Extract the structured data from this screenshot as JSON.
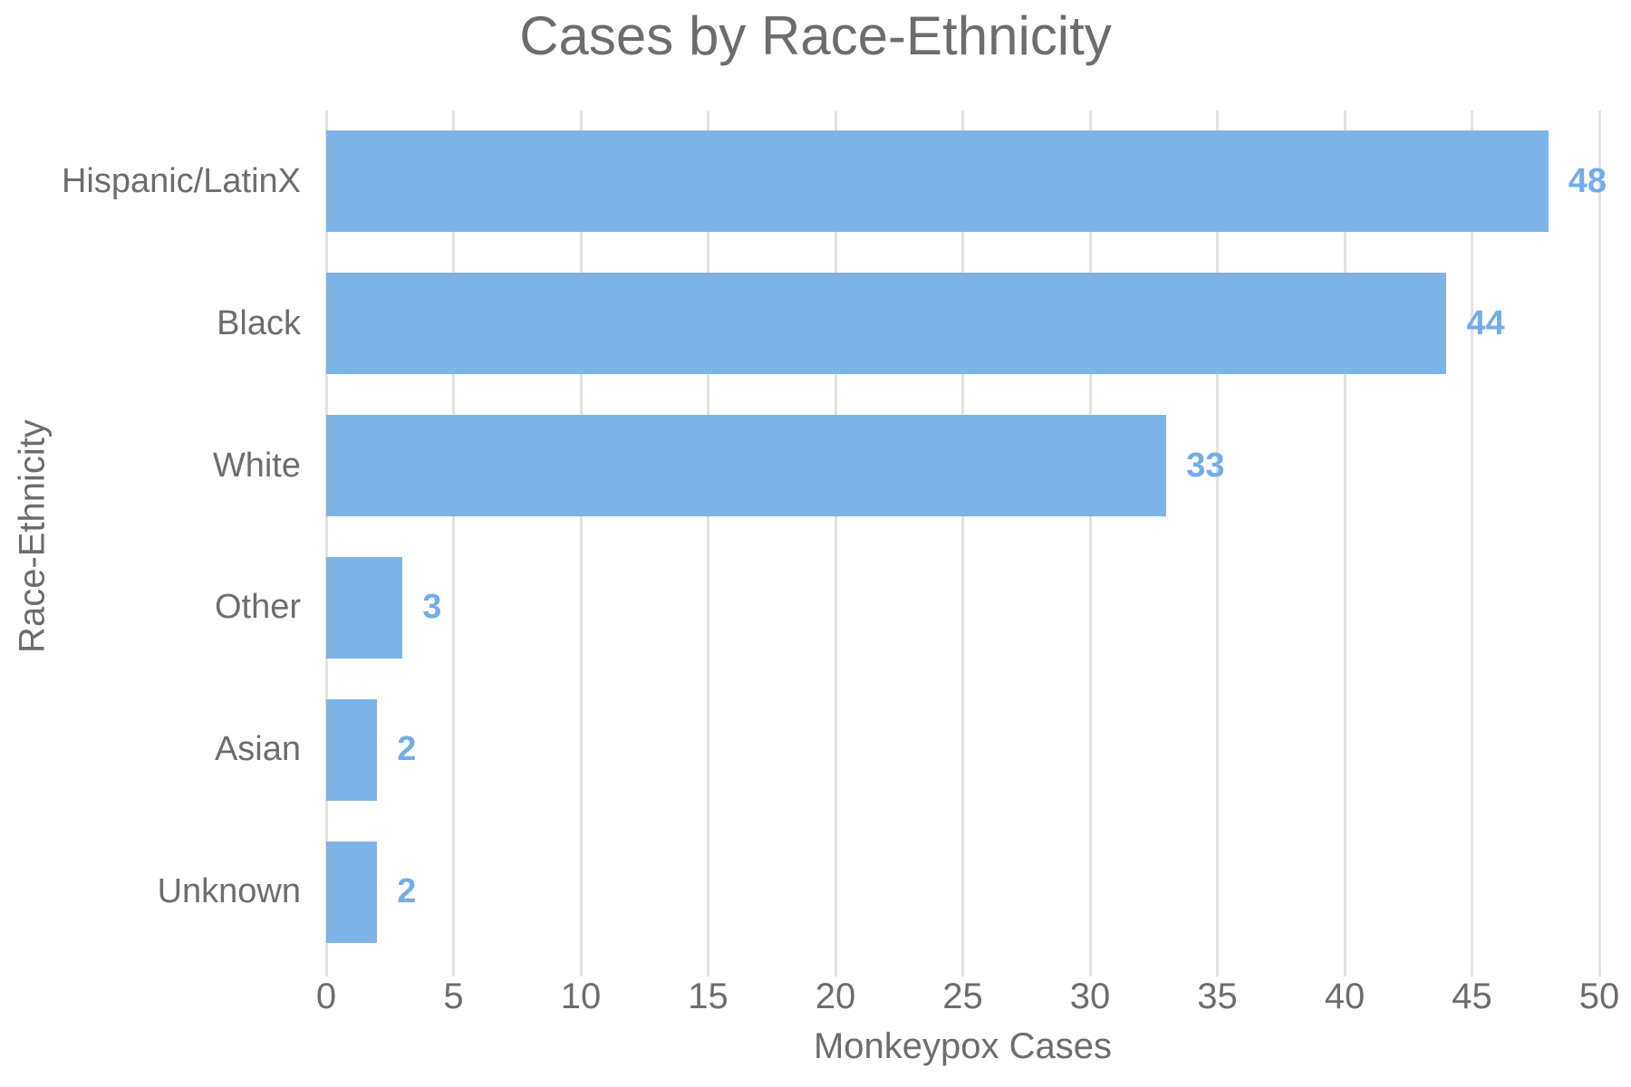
{
  "chart_data": {
    "type": "bar",
    "orientation": "horizontal",
    "title": "Cases by Race-Ethnicity",
    "xlabel": "Monkeypox Cases",
    "ylabel": "Race-Ethnicity",
    "categories": [
      "Hispanic/LatinX",
      "Black",
      "White",
      "Other",
      "Asian",
      "Unknown"
    ],
    "values": [
      48,
      44,
      33,
      3,
      2,
      2
    ],
    "value_labels": [
      "48",
      "44",
      "33",
      "3",
      "2",
      "2"
    ],
    "xlim": [
      0,
      50
    ],
    "xticks": [
      0,
      5,
      10,
      15,
      20,
      25,
      30,
      35,
      40,
      45,
      50
    ],
    "xtick_labels": [
      "0",
      "5",
      "10",
      "15",
      "20",
      "25",
      "30",
      "35",
      "40",
      "45",
      "50"
    ],
    "grid": true,
    "legend": false,
    "colors": {
      "bar": "#7EB3E8",
      "value_label": "#74ACE9",
      "text": "#6D6D6D",
      "grid": "#E2E2E2"
    }
  }
}
